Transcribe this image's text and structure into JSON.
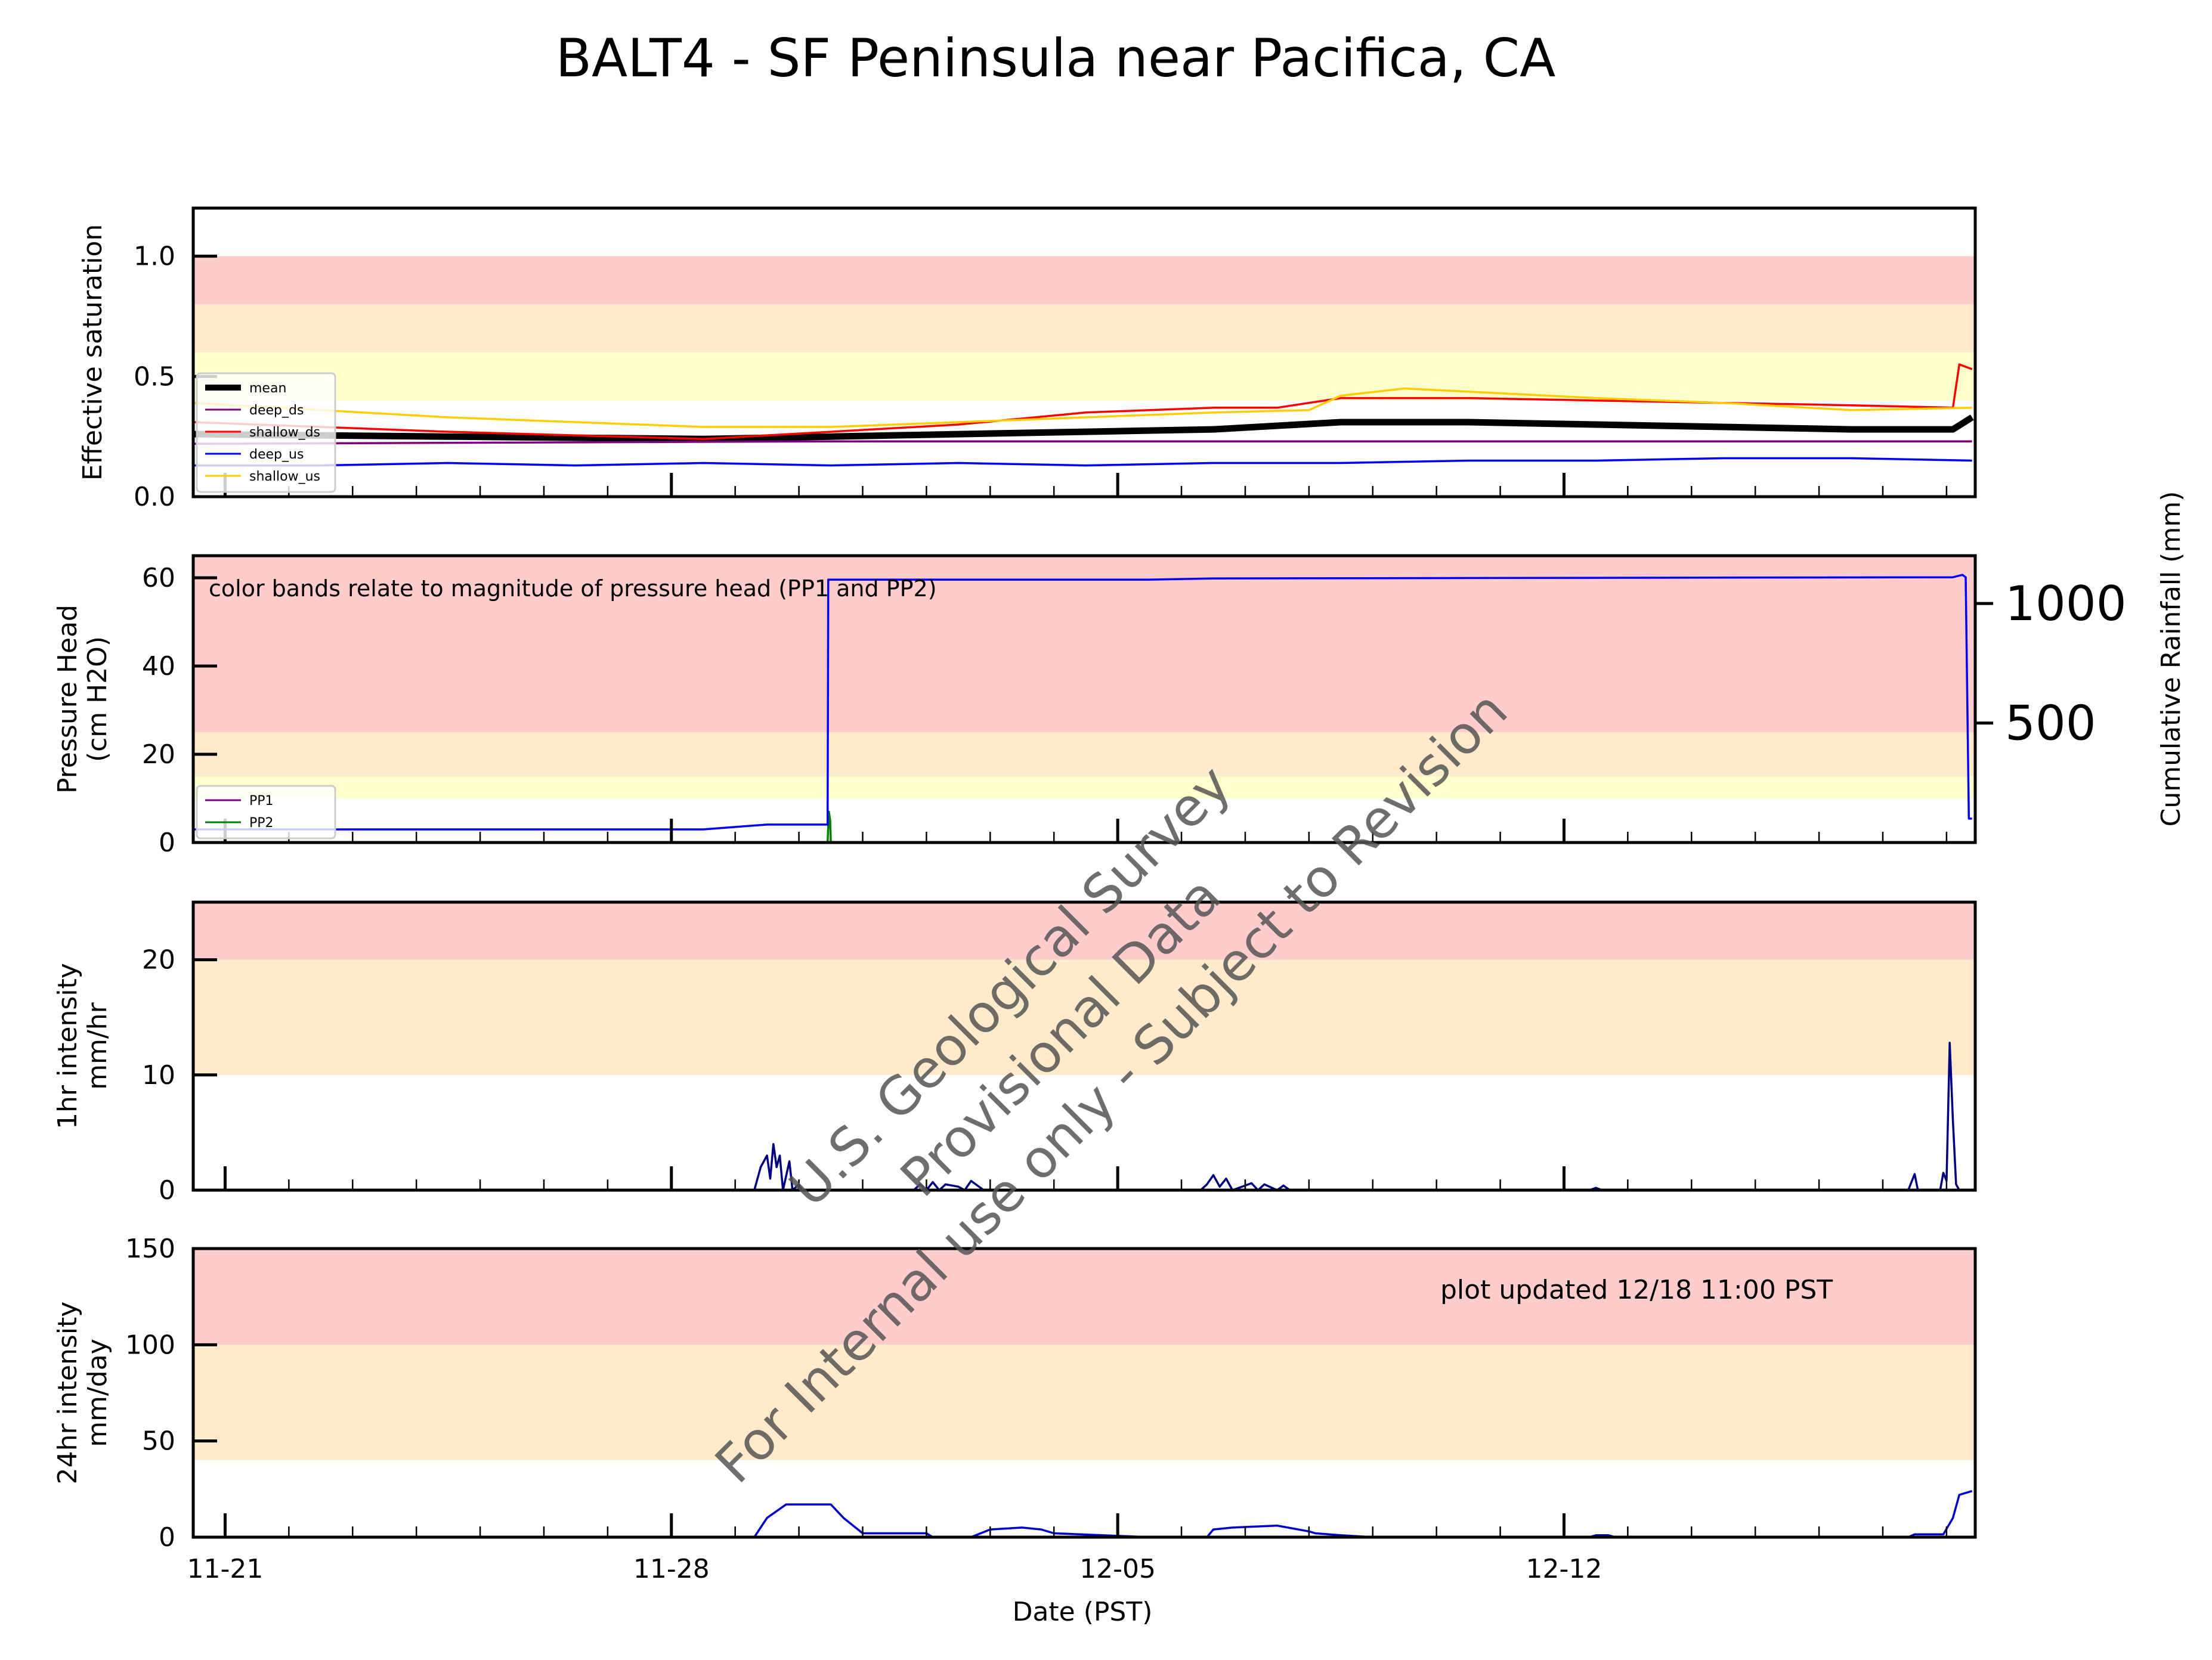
{
  "title": "BALT4 - SF Peninsula near Pacifica, CA",
  "xlabel": "Date (PST)",
  "x_ticks": [
    "11-21",
    "11-28",
    "12-05",
    "12-12"
  ],
  "x_range": [
    "11-20 12:00",
    "12-18 11:00"
  ],
  "watermark": [
    "U.S. Geological Survey",
    "Provisional Data",
    "For Internal use only - Subject to Revision"
  ],
  "updated_note": "plot updated 12/18 11:00  PST",
  "colors": {
    "red_band": "#ffcccc",
    "orange_band": "#ffebcc",
    "yellow_band": "#ffffcc"
  },
  "chart_data": [
    {
      "type": "line",
      "ylabel": "Effective saturation",
      "ylim": [
        0.0,
        1.2
      ],
      "y_ticks": [
        "0.0",
        "0.5",
        "1.0"
      ],
      "bands": [
        {
          "from": 0.8,
          "to": 1.0,
          "color": "#ffcccc"
        },
        {
          "from": 0.6,
          "to": 0.8,
          "color": "#ffebcc"
        },
        {
          "from": 0.4,
          "to": 0.6,
          "color": "#ffffcc"
        }
      ],
      "legend": "left",
      "series": [
        {
          "name": "mean",
          "color": "#000000",
          "x": [
            0,
            4,
            8,
            10,
            12,
            14,
            16,
            18,
            20,
            22,
            24,
            26,
            27.6,
            27.9
          ],
          "values": [
            0.26,
            0.25,
            0.24,
            0.25,
            0.26,
            0.27,
            0.28,
            0.31,
            0.31,
            0.3,
            0.29,
            0.28,
            0.28,
            0.33
          ]
        },
        {
          "name": "deep_ds",
          "color": "#800080",
          "x": [
            0,
            10,
            20,
            27.9
          ],
          "values": [
            0.22,
            0.23,
            0.23,
            0.23
          ]
        },
        {
          "name": "shallow_ds",
          "color": "#ff0000",
          "x": [
            0,
            4,
            8,
            12,
            14,
            16,
            17,
            18,
            20,
            22,
            24,
            26,
            27.6,
            27.7,
            27.9
          ],
          "values": [
            0.31,
            0.27,
            0.24,
            0.3,
            0.35,
            0.37,
            0.37,
            0.41,
            0.41,
            0.4,
            0.39,
            0.38,
            0.37,
            0.55,
            0.53
          ]
        },
        {
          "name": "deep_us",
          "color": "#0000ff",
          "x": [
            0,
            2,
            4,
            6,
            8,
            10,
            12,
            14,
            16,
            18,
            20,
            22,
            24,
            26,
            27.9
          ],
          "values": [
            0.13,
            0.13,
            0.14,
            0.13,
            0.14,
            0.13,
            0.14,
            0.13,
            0.14,
            0.14,
            0.15,
            0.15,
            0.16,
            0.16,
            0.15
          ]
        },
        {
          "name": "shallow_us",
          "color": "#ffcc00",
          "x": [
            0,
            4,
            8,
            10,
            12,
            14,
            16,
            17.5,
            18,
            19,
            22,
            24,
            26,
            27.9
          ],
          "values": [
            0.39,
            0.33,
            0.29,
            0.29,
            0.31,
            0.33,
            0.35,
            0.36,
            0.42,
            0.45,
            0.41,
            0.39,
            0.36,
            0.37
          ]
        }
      ]
    },
    {
      "type": "line",
      "ylabel": [
        "Pressure Head",
        "(cm H2O)"
      ],
      "ylim": [
        0,
        65
      ],
      "y_ticks": [
        "0",
        "20",
        "40",
        "60"
      ],
      "y2label": "Cumulative Rainfall (mm)",
      "y2_ticks": [
        "500",
        "1000"
      ],
      "y2lim": [
        0,
        1200
      ],
      "note": "color bands relate to magnitude of pressure head (PP1 and PP2)",
      "bands": [
        {
          "from": 25,
          "to": 65,
          "color": "#ffcccc"
        },
        {
          "from": 15,
          "to": 25,
          "color": "#ffebcc"
        },
        {
          "from": 10,
          "to": 15,
          "color": "#ffffcc"
        }
      ],
      "legend": "lower-left",
      "series": [
        {
          "name": "PP1",
          "color": "#800080",
          "x": [],
          "values": []
        },
        {
          "name": "PP2",
          "color": "#008000",
          "x": [
            9.95,
            9.97,
            9.99,
            10.0
          ],
          "values": [
            0,
            7,
            5,
            0
          ]
        },
        {
          "name": "cumulative_rainfall",
          "axis": "y2",
          "color": "#0000ff",
          "x": [
            0,
            8,
            9,
            9.95,
            9.96,
            15,
            16,
            27.6,
            27.75,
            27.8,
            27.85,
            27.9
          ],
          "values": [
            55,
            55,
            75,
            75,
            1100,
            1100,
            1105,
            1110,
            1120,
            1110,
            100,
            100
          ]
        }
      ]
    },
    {
      "type": "line",
      "ylabel": [
        "1hr intensity",
        "mm/hr"
      ],
      "ylim": [
        0,
        25
      ],
      "y_ticks": [
        "0",
        "10",
        "20"
      ],
      "bands": [
        {
          "from": 20,
          "to": 25,
          "color": "#ffcccc"
        },
        {
          "from": 10,
          "to": 20,
          "color": "#ffebcc"
        }
      ],
      "series": [
        {
          "name": "rain_1hr",
          "color": "#000080",
          "x": [
            8.8,
            8.9,
            9.0,
            9.05,
            9.1,
            9.15,
            9.2,
            9.25,
            9.35,
            9.4,
            9.5,
            9.55,
            11.3,
            11.4,
            11.5,
            11.6,
            11.7,
            11.8,
            12.0,
            12.1,
            12.2,
            12.4,
            15.8,
            15.9,
            16.0,
            16.1,
            16.2,
            16.3,
            16.6,
            16.7,
            16.8,
            17.0,
            17.1,
            17.2,
            21.9,
            22.0,
            22.1,
            26.9,
            27.0,
            27.05,
            27.4,
            27.45,
            27.5,
            27.55,
            27.6,
            27.65,
            27.7,
            27.9
          ],
          "values": [
            0,
            2,
            3,
            1,
            4,
            2,
            3,
            0,
            2.5,
            0,
            0.5,
            0,
            0,
            0.5,
            0,
            0.7,
            0,
            0.5,
            0.3,
            0,
            0.8,
            0,
            0,
            0.5,
            1.3,
            0.3,
            1.0,
            0,
            0.6,
            0,
            0.5,
            0,
            0.4,
            0,
            0,
            0.2,
            0,
            0,
            1.4,
            0,
            0,
            1.5,
            0.8,
            12.8,
            6,
            0.5,
            0,
            0
          ]
        }
      ]
    },
    {
      "type": "line",
      "ylabel": [
        "24hr intensity",
        "mm/day"
      ],
      "ylim": [
        0,
        150
      ],
      "y_ticks": [
        "0",
        "50",
        "100",
        "150"
      ],
      "bands": [
        {
          "from": 100,
          "to": 150,
          "color": "#ffcccc"
        },
        {
          "from": 40,
          "to": 100,
          "color": "#ffebcc"
        }
      ],
      "series": [
        {
          "name": "rain_24hr",
          "color": "#0000cc",
          "x": [
            0,
            8.8,
            9.0,
            9.3,
            10.0,
            10.2,
            10.5,
            10.6,
            11.5,
            11.6,
            12.2,
            12.5,
            13.0,
            13.3,
            13.5,
            15.0,
            15.9,
            16.0,
            16.3,
            17.0,
            17.5,
            17.6,
            18.0,
            18.5,
            21.9,
            22.0,
            22.2,
            22.3,
            23.0,
            26.9,
            27.0,
            27.45,
            27.6,
            27.7,
            27.9
          ],
          "values": [
            0,
            0,
            10,
            17,
            17,
            10,
            2,
            2,
            2,
            0,
            0,
            4,
            5,
            4,
            2,
            0,
            0,
            4,
            5,
            6,
            3,
            2,
            1,
            0,
            0,
            1,
            1,
            0,
            0,
            0,
            1.5,
            1.5,
            10,
            22,
            24
          ]
        }
      ]
    }
  ]
}
